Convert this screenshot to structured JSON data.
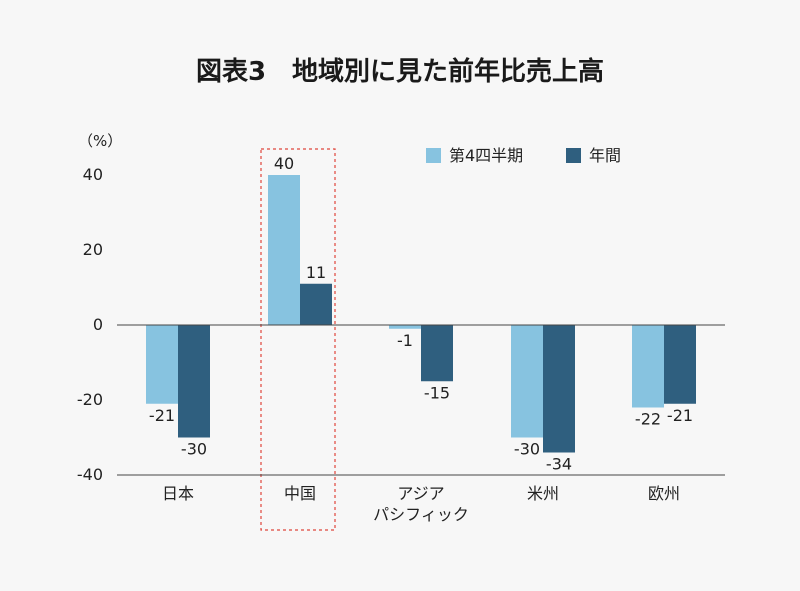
{
  "chart_data": {
    "type": "bar",
    "title": "図表3　地域別に見た前年比売上高",
    "ylabel": "（%）",
    "xlabel": "",
    "ylim": [
      -40,
      40
    ],
    "yticks": [
      40,
      20,
      0,
      -20,
      -40
    ],
    "ytick_labels": [
      "40",
      "20",
      "0",
      "-20",
      "-40"
    ],
    "categories": [
      [
        "日本"
      ],
      [
        "中国"
      ],
      [
        "アジア",
        "パシフィック"
      ],
      [
        "米州"
      ],
      [
        "欧州"
      ]
    ],
    "series": [
      {
        "name": "第4四半期",
        "values": [
          -21,
          40,
          -1,
          -30,
          -22
        ],
        "labels": [
          "-21",
          "40",
          "-1",
          "-30",
          "-22"
        ]
      },
      {
        "name": "年間",
        "values": [
          -30,
          11,
          -15,
          -34,
          -21
        ],
        "labels": [
          "-30",
          "11",
          "-15",
          "-34",
          "-21"
        ]
      }
    ],
    "legend_position": "top-right",
    "grid": false,
    "highlight_category": 1,
    "colors": {
      "series": [
        "#87c3e0",
        "#2f5f7f"
      ],
      "highlight": "#e0463c",
      "axis": "#444444"
    }
  }
}
